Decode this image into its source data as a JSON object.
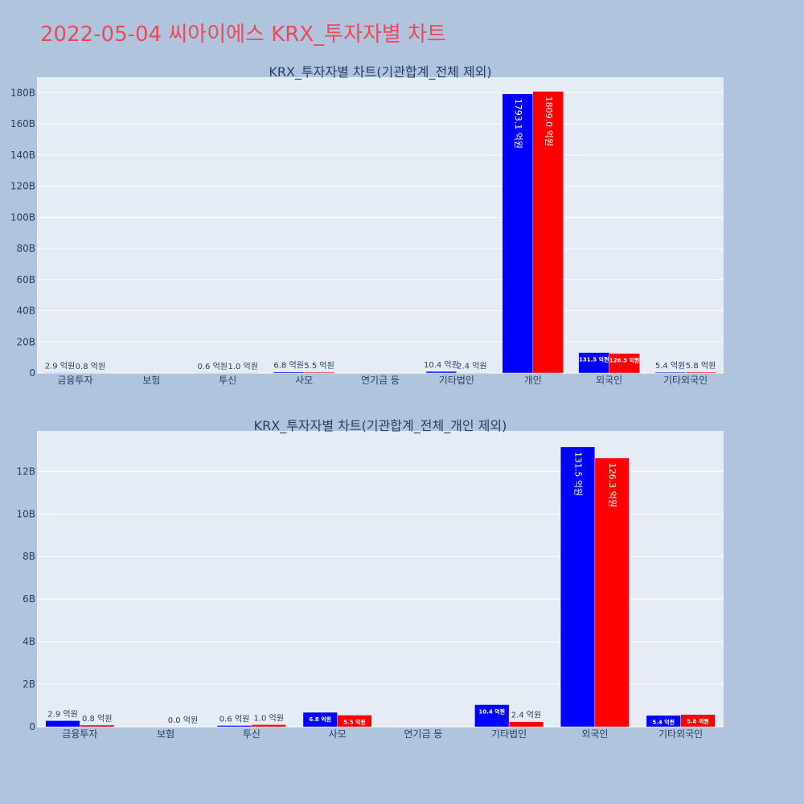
{
  "page": {
    "title": "2022-05-04 씨아이에스 KRX_투자자별 차트"
  },
  "chart_data": [
    {
      "type": "bar",
      "title": "KRX_투자자별 차트(기관합계_전체 제외)",
      "categories": [
        "금융투자",
        "보험",
        "투신",
        "사모",
        "연기금 등",
        "기타법인",
        "개인",
        "외국인",
        "기타외국인"
      ],
      "series": [
        {
          "color": "#0000ff",
          "values": [
            290000000,
            null,
            60000000,
            680000000,
            null,
            1040000000,
            179310000000,
            13150000000,
            540000000
          ],
          "labels": [
            "2.9 억원",
            "",
            "0.6 억원",
            "6.8 억원",
            "",
            "10.4 억원",
            "1793.1 억원",
            "131.5 억원",
            "5.4 억원"
          ]
        },
        {
          "color": "#ff0000",
          "values": [
            80000000,
            null,
            100000000,
            550000000,
            null,
            240000000,
            180900000000,
            12630000000,
            580000000
          ],
          "labels": [
            "0.8 억원",
            "",
            "1.0 억원",
            "5.5 억원",
            "",
            "2.4 억원",
            "1809.0 억원",
            "126.3 억원",
            "5.8 억원"
          ]
        }
      ],
      "ylim": [
        0,
        190000000000
      ],
      "yticks": [
        0,
        20000000000,
        40000000000,
        60000000000,
        80000000000,
        100000000000,
        120000000000,
        140000000000,
        160000000000,
        180000000000
      ],
      "ytick_labels": [
        "0",
        "20B",
        "40B",
        "60B",
        "80B",
        "100B",
        "120B",
        "140B",
        "160B",
        "180B"
      ],
      "grid": true
    },
    {
      "type": "bar",
      "title": "KRX_투자자별 차트(기관합계_전체_개인 제외)",
      "categories": [
        "금융투자",
        "보험",
        "투신",
        "사모",
        "연기금 등",
        "기타법인",
        "외국인",
        "기타외국인"
      ],
      "series": [
        {
          "color": "#0000ff",
          "values": [
            290000000,
            null,
            60000000,
            680000000,
            null,
            1040000000,
            13150000000,
            540000000
          ],
          "labels": [
            "2.9 억원",
            "",
            "0.6 억원",
            "6.8 억원",
            "",
            "10.4 억원",
            "131.5 억원",
            "5.4 억원"
          ]
        },
        {
          "color": "#ff0000",
          "values": [
            80000000,
            0,
            100000000,
            550000000,
            null,
            240000000,
            12630000000,
            580000000
          ],
          "labels": [
            "0.8 억원",
            "0.0 억원",
            "1.0 억원",
            "5.5 억원",
            "",
            "2.4 억원",
            "126.3 억원",
            "5.8 억원"
          ]
        }
      ],
      "ylim": [
        0,
        13900000000
      ],
      "yticks": [
        0,
        2000000000,
        4000000000,
        6000000000,
        8000000000,
        10000000000,
        12000000000
      ],
      "ytick_labels": [
        "0",
        "2B",
        "4B",
        "6B",
        "8B",
        "10B",
        "12B"
      ],
      "grid": true
    }
  ]
}
